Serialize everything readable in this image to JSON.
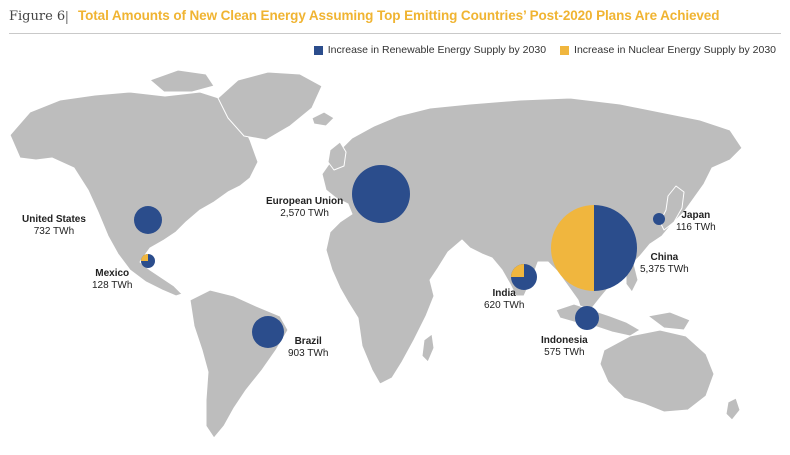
{
  "header": {
    "figure_label": "Figure 6",
    "separator": "|",
    "title": "Total Amounts of New Clean Energy Assuming Top Emitting Countries’ Post-2020 Plans Are Achieved"
  },
  "legend": {
    "renewable_label": "Increase in Renewable Energy Supply by 2030",
    "nuclear_label": "Increase in Nuclear Energy Supply by 2030"
  },
  "colors": {
    "renewable": "#2b4d8c",
    "nuclear": "#f0b63e",
    "land": "#bdbdbd",
    "title": "#f0b432"
  },
  "regions": [
    {
      "name": "United States",
      "value": "732 TWh",
      "nuclear_share": 0
    },
    {
      "name": "Mexico",
      "value": "128 TWh",
      "nuclear_share": 0.2
    },
    {
      "name": "Brazil",
      "value": "903 TWh",
      "nuclear_share": 0
    },
    {
      "name": "European Union",
      "value": "2,570 TWh",
      "nuclear_share": 0
    },
    {
      "name": "India",
      "value": "620 TWh",
      "nuclear_share": 0.25
    },
    {
      "name": "China",
      "value": "5,375 TWh",
      "nuclear_share": 0.5
    },
    {
      "name": "Japan",
      "value": "116 TWh",
      "nuclear_share": 0
    },
    {
      "name": "Indonesia",
      "value": "575 TWh",
      "nuclear_share": 0
    }
  ]
}
